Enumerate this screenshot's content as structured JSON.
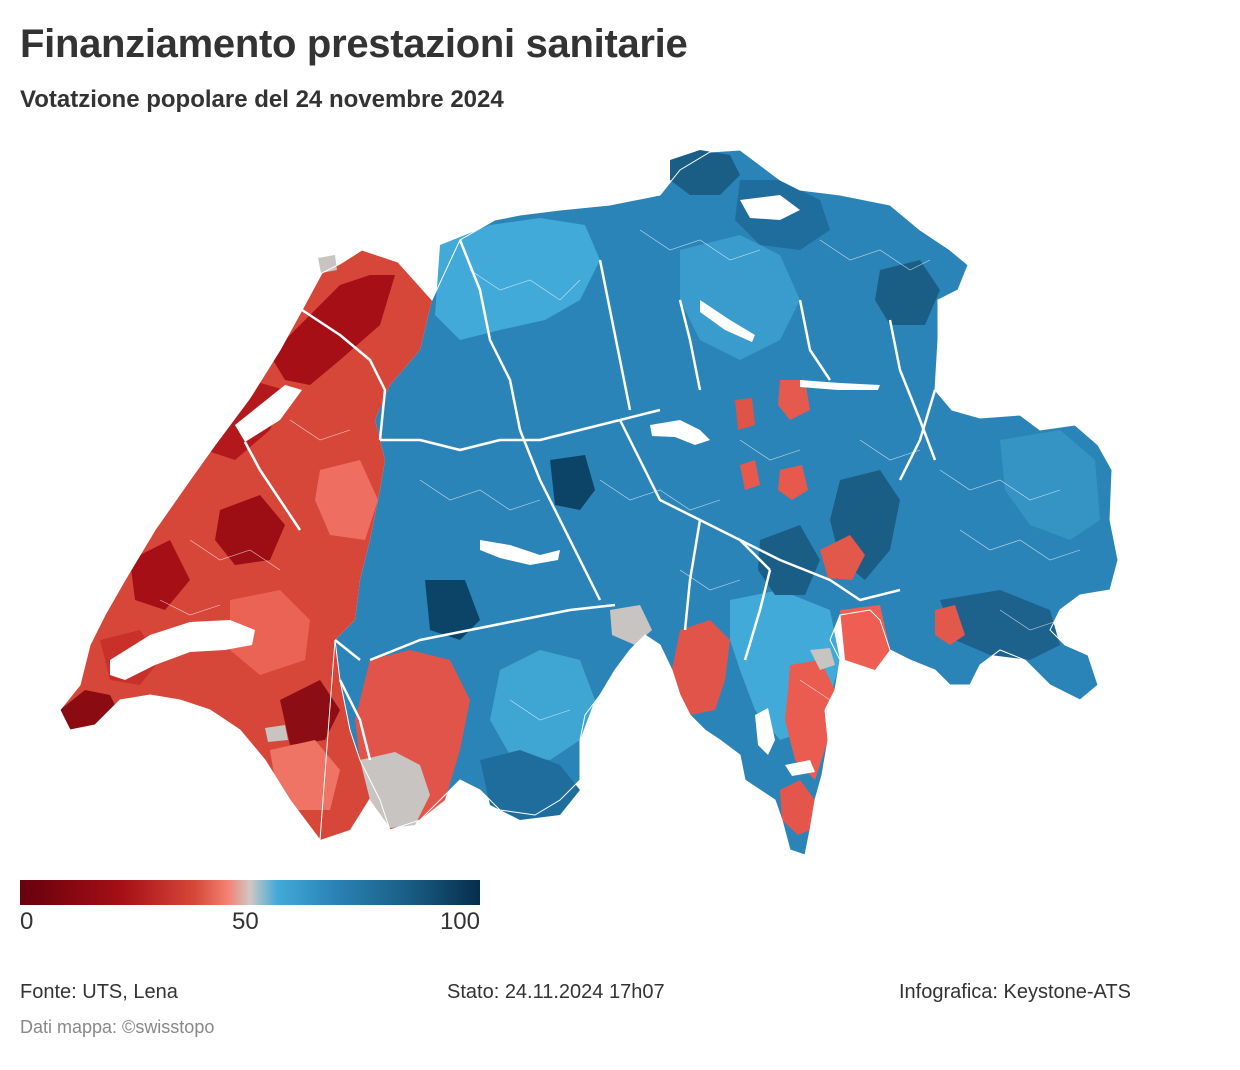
{
  "header": {
    "title": "Finanziamento prestazioni sanitarie",
    "subtitle": "Votatzione popolare del 24 novembre 2024"
  },
  "legend": {
    "tick_min": "0",
    "tick_mid": "50",
    "tick_max": "100",
    "scale_colors": [
      "#67000d",
      "#a50f15",
      "#d6473a",
      "#f47f70",
      "#cfc7c4",
      "#41aad8",
      "#2b84b7",
      "#1a5e86",
      "#062e4b"
    ]
  },
  "map": {
    "no_data_color": "#c8c4c2",
    "border_color": "#ffffff"
  },
  "footer": {
    "source": "Fonte: UTS, Lena",
    "status": "Stato: 24.11.2024 17h07",
    "credit": "Infografica: Keystone-ATS",
    "map_credit": "Dati mappa: ©swisstopo"
  }
}
